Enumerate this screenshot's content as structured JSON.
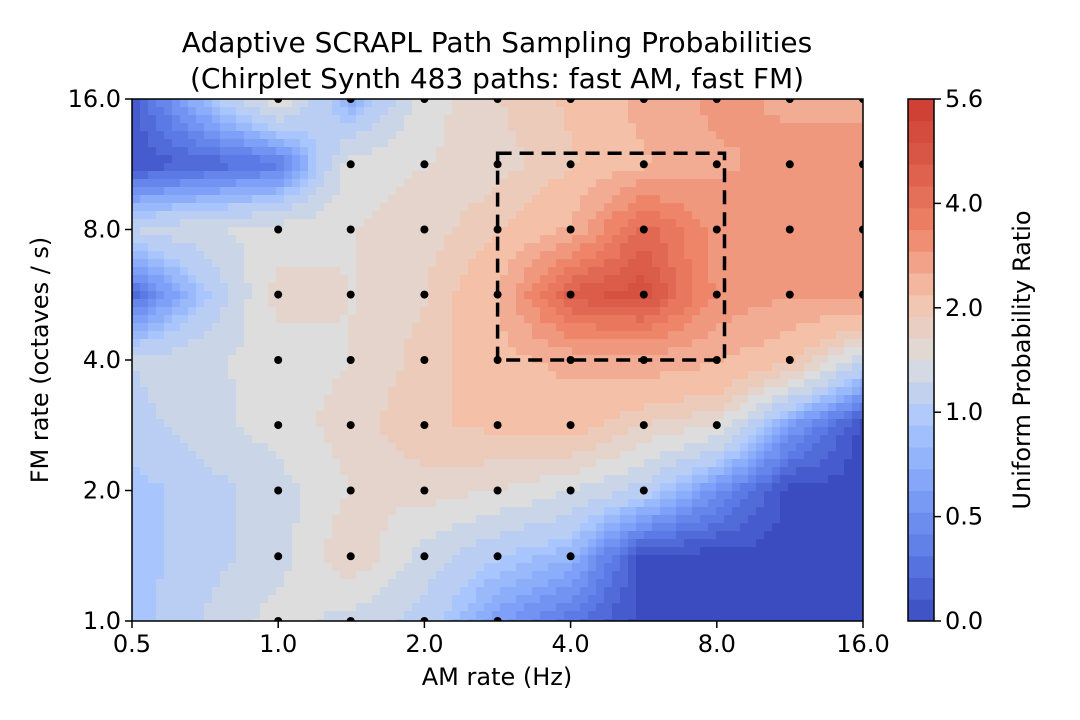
{
  "chart_data": {
    "type": "contour",
    "title_line1": "Adaptive SCRAPL Path Sampling Probabilities",
    "title_line2": "(Chirplet Synth 483 paths: fast AM, fast FM)",
    "xlabel": "AM rate (Hz)",
    "ylabel": "FM rate (octaves / s)",
    "xscale": "log2",
    "yscale": "log2",
    "xlim": [
      0.5,
      16.0
    ],
    "ylim": [
      1.0,
      16.0
    ],
    "x_ticks": [
      0.5,
      1.0,
      2.0,
      4.0,
      8.0,
      16.0
    ],
    "x_tick_labels": [
      "0.5",
      "1.0",
      "2.0",
      "4.0",
      "8.0",
      "16.0"
    ],
    "y_ticks": [
      1.0,
      2.0,
      4.0,
      8.0,
      16.0
    ],
    "y_tick_labels": [
      "1.0",
      "2.0",
      "4.0",
      "8.0",
      "16.0"
    ],
    "x_grid": [
      0.5,
      1.0,
      1.41,
      2.0,
      2.83,
      4.0,
      5.66,
      8.0,
      11.31,
      16.0
    ],
    "y_grid": [
      1.0,
      1.41,
      2.0,
      2.83,
      4.0,
      5.66,
      8.0,
      11.31,
      16.0
    ],
    "z_ratio": [
      [
        0.9,
        1.5,
        1.3,
        1.1,
        0.6,
        0.3,
        0.0,
        0.0,
        0.0,
        0.0
      ],
      [
        0.9,
        1.3,
        1.8,
        1.3,
        1.0,
        0.8,
        0.0,
        0.0,
        0.0,
        0.0
      ],
      [
        0.9,
        1.3,
        1.6,
        1.7,
        1.6,
        1.4,
        1.1,
        0.5,
        0.0,
        0.0
      ],
      [
        1.1,
        1.5,
        1.7,
        2.0,
        2.1,
        2.2,
        1.8,
        1.6,
        0.6,
        0.0
      ],
      [
        1.2,
        1.5,
        1.6,
        1.9,
        2.3,
        2.6,
        2.7,
        2.5,
        2.1,
        1.2
      ],
      [
        0.2,
        1.7,
        1.6,
        1.8,
        2.4,
        4.6,
        5.0,
        3.2,
        2.9,
        2.9
      ],
      [
        1.2,
        1.5,
        1.6,
        1.7,
        2.0,
        2.5,
        4.3,
        3.1,
        3.2,
        3.2
      ],
      [
        0.05,
        0.3,
        1.5,
        1.6,
        1.7,
        2.0,
        2.4,
        2.8,
        3.0,
        3.0
      ],
      [
        0.1,
        1.6,
        0.7,
        1.5,
        1.8,
        2.1,
        2.6,
        3.0,
        2.8,
        2.8
      ]
    ],
    "sampled_paths": [
      [
        1.0,
        1.0
      ],
      [
        1.41,
        1.0
      ],
      [
        2.0,
        1.0
      ],
      [
        2.83,
        1.0
      ],
      [
        1.0,
        1.41
      ],
      [
        1.41,
        1.41
      ],
      [
        2.0,
        1.41
      ],
      [
        2.83,
        1.41
      ],
      [
        4.0,
        1.41
      ],
      [
        1.0,
        2.0
      ],
      [
        1.41,
        2.0
      ],
      [
        2.0,
        2.0
      ],
      [
        2.83,
        2.0
      ],
      [
        4.0,
        2.0
      ],
      [
        5.66,
        2.0
      ],
      [
        1.0,
        2.83
      ],
      [
        1.41,
        2.83
      ],
      [
        2.0,
        2.83
      ],
      [
        2.83,
        2.83
      ],
      [
        4.0,
        2.83
      ],
      [
        5.66,
        2.83
      ],
      [
        8.0,
        2.83
      ],
      [
        1.0,
        4.0
      ],
      [
        1.41,
        4.0
      ],
      [
        2.0,
        4.0
      ],
      [
        2.83,
        4.0
      ],
      [
        4.0,
        4.0
      ],
      [
        5.66,
        4.0
      ],
      [
        8.0,
        4.0
      ],
      [
        11.31,
        4.0
      ],
      [
        1.0,
        5.66
      ],
      [
        1.41,
        5.66
      ],
      [
        2.0,
        5.66
      ],
      [
        2.83,
        5.66
      ],
      [
        4.0,
        5.66
      ],
      [
        5.66,
        5.66
      ],
      [
        8.0,
        5.66
      ],
      [
        11.31,
        5.66
      ],
      [
        16.0,
        5.66
      ],
      [
        1.0,
        8.0
      ],
      [
        1.41,
        8.0
      ],
      [
        2.0,
        8.0
      ],
      [
        2.83,
        8.0
      ],
      [
        4.0,
        8.0
      ],
      [
        5.66,
        8.0
      ],
      [
        8.0,
        8.0
      ],
      [
        11.31,
        8.0
      ],
      [
        16.0,
        8.0
      ],
      [
        1.41,
        11.31
      ],
      [
        2.0,
        11.31
      ],
      [
        2.83,
        11.31
      ],
      [
        4.0,
        11.31
      ],
      [
        5.66,
        11.31
      ],
      [
        8.0,
        11.31
      ],
      [
        11.31,
        11.31
      ],
      [
        16.0,
        11.31
      ],
      [
        1.0,
        16.0
      ],
      [
        1.41,
        16.0
      ],
      [
        2.0,
        16.0
      ],
      [
        2.83,
        16.0
      ],
      [
        4.0,
        16.0
      ],
      [
        5.66,
        16.0
      ],
      [
        8.0,
        16.0
      ],
      [
        11.31,
        16.0
      ],
      [
        16.0,
        16.0
      ]
    ],
    "highlight_box": {
      "x_range": [
        2.83,
        8.3
      ],
      "y_range": [
        4.0,
        12.0
      ],
      "style": "dashed"
    },
    "colorbar": {
      "label": "Uniform Probability Ratio",
      "ticks": [
        0.0,
        0.5,
        1.0,
        2.0,
        4.0,
        5.6
      ],
      "tick_labels": [
        "0.0",
        "0.5",
        "1.0",
        "2.0",
        "4.0",
        "5.6"
      ],
      "colormap": "coolwarm"
    }
  }
}
